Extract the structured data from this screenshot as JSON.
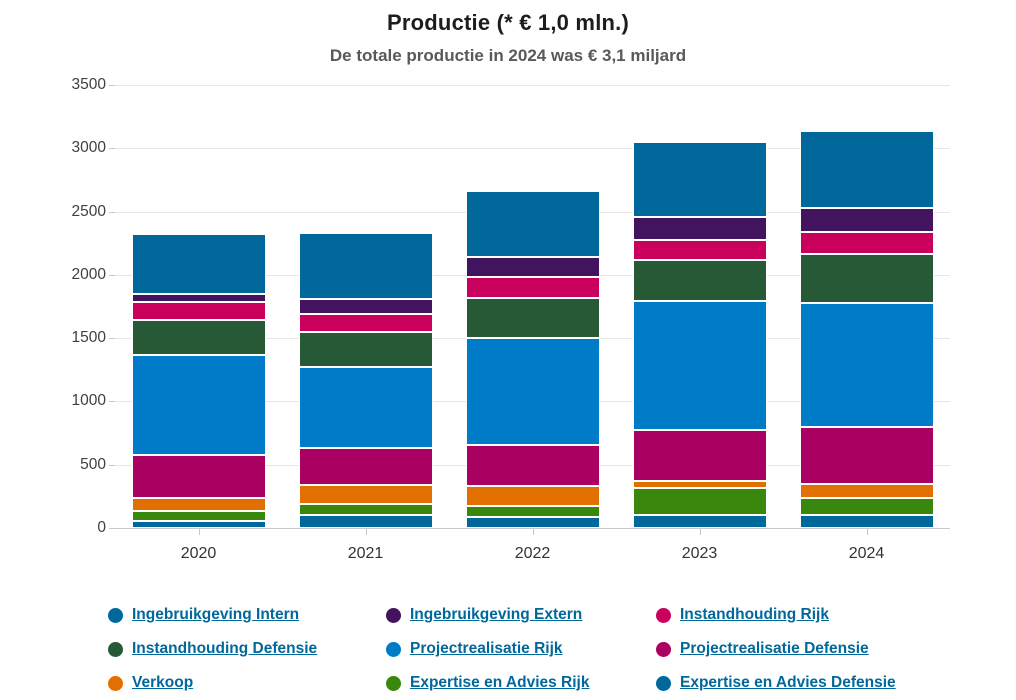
{
  "title": "Productie (* € 1,0 mln.)",
  "subtitle": "De totale productie in 2024 was € 3,1 miljard",
  "chart_data": {
    "type": "bar",
    "stacked": true,
    "unit": "€ 1,0 mln.",
    "categories": [
      "2020",
      "2021",
      "2022",
      "2023",
      "2024"
    ],
    "series": [
      {
        "name": "Ingebruikgeving Intern",
        "color": "#01689b",
        "values": [
          480,
          520,
          520,
          595,
          610
        ]
      },
      {
        "name": "Ingebruikgeving Extern",
        "color": "#42145f",
        "values": [
          60,
          120,
          160,
          180,
          185
        ]
      },
      {
        "name": "Instandhouding Rijk",
        "color": "#ca005d",
        "values": [
          140,
          140,
          165,
          160,
          175
        ]
      },
      {
        "name": "Instandhouding Defensie",
        "color": "#275937",
        "values": [
          275,
          275,
          310,
          325,
          390
        ]
      },
      {
        "name": "Projectrealisatie Rijk",
        "color": "#007bc7",
        "values": [
          795,
          645,
          850,
          1015,
          975
        ]
      },
      {
        "name": "Projectrealisatie Defensie",
        "color": "#a90061",
        "values": [
          335,
          290,
          325,
          400,
          450
        ]
      },
      {
        "name": "Verkoop",
        "color": "#e17000",
        "values": [
          105,
          150,
          155,
          60,
          110
        ]
      },
      {
        "name": "Expertise en Advies Rijk",
        "color": "#39870c",
        "values": [
          80,
          85,
          90,
          215,
          135
        ]
      },
      {
        "name": "Expertise en Advies Defensie",
        "color": "#01689b",
        "values": [
          55,
          105,
          85,
          100,
          105
        ]
      }
    ],
    "totals": [
      2325,
      2330,
      2660,
      3050,
      3135
    ],
    "ylim": [
      0,
      3500
    ],
    "ytick_step": 500,
    "xlabel": "",
    "ylabel": "",
    "grid": true,
    "legend_position": "bottom",
    "legend_columns": 3,
    "legend_text_color": "#01689b",
    "stack_order": "first-series-on-top"
  }
}
